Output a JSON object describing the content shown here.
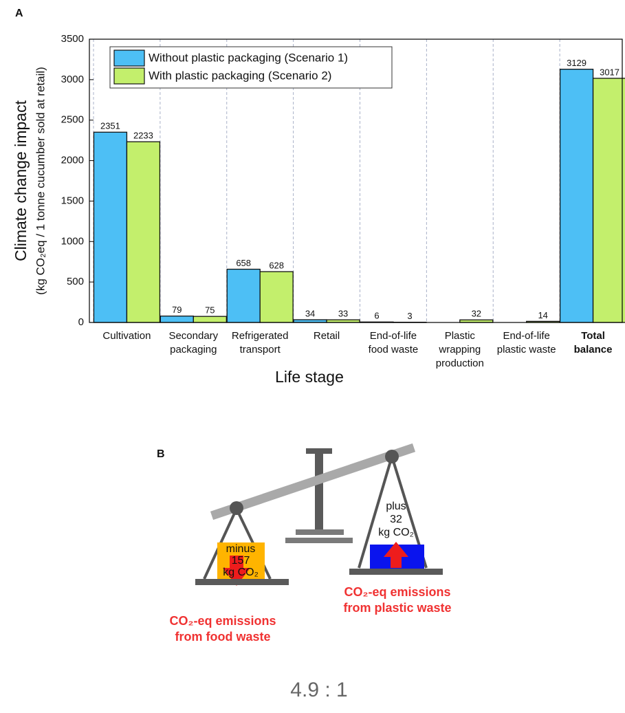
{
  "panel_a_label": "A",
  "chart_data": {
    "type": "bar",
    "ylabel": [
      "Climate change impact",
      "(kg CO₂eq / 1 tonne cucumber sold at retail)"
    ],
    "xlabel": "Life stage",
    "categories": [
      "Cultivation",
      "Secondary\npackaging",
      "Refrigerated\ntransport",
      "Retail",
      "End-of-life\nfood waste",
      "Plastic\nwrapping\nproduction",
      "End-of-life\nplastic waste",
      "Total\nbalance"
    ],
    "series": [
      {
        "name": "Without plastic packaging (Scenario 1)",
        "color": "#4dbff5",
        "values": [
          2351,
          79,
          658,
          34,
          6,
          null,
          null,
          3129
        ]
      },
      {
        "name": "With plastic packaging (Scenario 2)",
        "color": "#c3ef6c",
        "values": [
          2233,
          75,
          628,
          33,
          3,
          32,
          14,
          3017
        ]
      }
    ],
    "ylim": [
      0,
      3500
    ],
    "yticks": [
      0,
      500,
      1000,
      1500,
      2000,
      2500,
      3000,
      3500
    ],
    "legend": "upper left"
  },
  "diagram": {
    "panel_label": "B",
    "left_weight": "minus\n157\nkg CO₂",
    "right_weight": "plus\n32\nkg CO₂",
    "left_caption": "CO₂-eq emissions\nfrom food waste",
    "right_caption": "CO₂-eq emissions\nfrom plastic waste",
    "ratio": "4.9 : 1"
  }
}
